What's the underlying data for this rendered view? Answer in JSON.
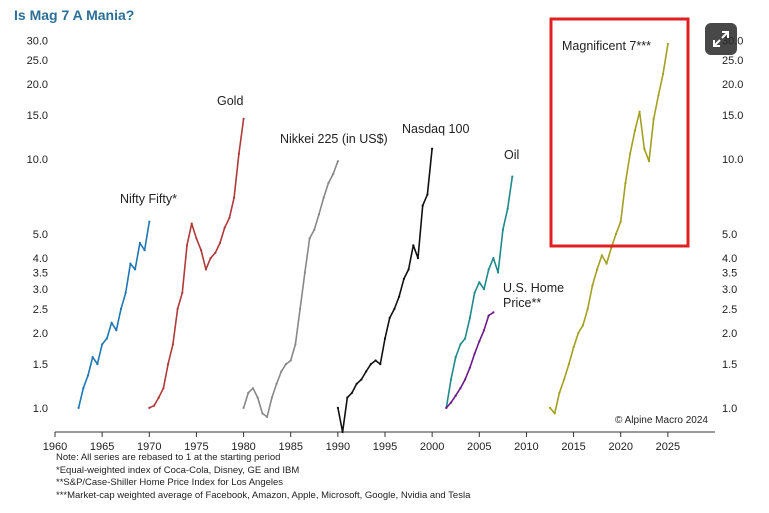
{
  "chart_data": {
    "type": "line",
    "title": "Is Mag 7 A Mania?",
    "y_scale": "log",
    "ylim": [
      0.8,
      33
    ],
    "xlim": [
      1960,
      2030
    ],
    "x_ticks": [
      "1960",
      "1965",
      "1970",
      "1975",
      "1980",
      "1985",
      "1990",
      "1995",
      "2000",
      "2005",
      "2010",
      "2015",
      "2020",
      "2025"
    ],
    "y_ticks": [
      "30.0",
      "25.0",
      "20.0",
      "15.0",
      "10.0",
      "5.0",
      "4.0",
      "3.5",
      "3.0",
      "2.5",
      "2.0",
      "1.5",
      "1.0"
    ],
    "grid": false,
    "source": "© Alpine Macro 2024",
    "series": [
      {
        "name": "Nifty Fifty*",
        "color": "#1f77b4",
        "x": [
          1962.5,
          1963,
          1963.5,
          1964,
          1964.5,
          1965,
          1965.5,
          1966,
          1966.5,
          1967,
          1967.5,
          1968,
          1968.5,
          1969,
          1969.5,
          1970
        ],
        "y": [
          1.0,
          1.2,
          1.35,
          1.6,
          1.5,
          1.8,
          1.9,
          2.2,
          2.05,
          2.5,
          2.9,
          3.8,
          3.6,
          4.6,
          4.3,
          5.6
        ]
      },
      {
        "name": "Gold",
        "color": "#b03a3a",
        "x": [
          1970,
          1970.5,
          1971,
          1971.5,
          1972,
          1972.5,
          1973,
          1973.5,
          1974,
          1974.5,
          1975,
          1975.5,
          1976,
          1976.5,
          1977,
          1977.5,
          1978,
          1978.5,
          1979,
          1979.5,
          1980
        ],
        "y": [
          1.0,
          1.02,
          1.1,
          1.2,
          1.5,
          1.8,
          2.5,
          2.9,
          4.5,
          5.5,
          4.8,
          4.3,
          3.6,
          4.0,
          4.2,
          4.6,
          5.3,
          5.8,
          7.0,
          10.5,
          14.5
        ]
      },
      {
        "name": "Nikkei 225 (in US$)",
        "color": "#888888",
        "x": [
          1980,
          1980.5,
          1981,
          1981.5,
          1982,
          1982.5,
          1983,
          1983.5,
          1984,
          1984.5,
          1985,
          1985.5,
          1986,
          1986.5,
          1987,
          1987.5,
          1988,
          1988.5,
          1989,
          1989.5,
          1990
        ],
        "y": [
          1.0,
          1.15,
          1.2,
          1.1,
          0.95,
          0.92,
          1.1,
          1.25,
          1.4,
          1.5,
          1.55,
          1.8,
          2.5,
          3.5,
          4.8,
          5.2,
          6.0,
          7.0,
          8.0,
          8.7,
          9.8
        ]
      },
      {
        "name": "Nasdaq 100",
        "color": "#111111",
        "x": [
          1990,
          1990.5,
          1991,
          1991.5,
          1992,
          1992.5,
          1993,
          1993.5,
          1994,
          1994.5,
          1995,
          1995.5,
          1996,
          1996.5,
          1997,
          1997.5,
          1998,
          1998.5,
          1999,
          1999.5,
          2000
        ],
        "y": [
          1.0,
          0.8,
          1.1,
          1.15,
          1.25,
          1.3,
          1.4,
          1.5,
          1.55,
          1.5,
          1.9,
          2.3,
          2.5,
          2.8,
          3.3,
          3.6,
          4.5,
          4.0,
          6.5,
          7.2,
          11.0
        ]
      },
      {
        "name": "Oil",
        "color": "#1f8a8a",
        "x": [
          2001.5,
          2002,
          2002.5,
          2003,
          2003.5,
          2004,
          2004.5,
          2005,
          2005.5,
          2006,
          2006.5,
          2007,
          2007.5,
          2008,
          2008.5
        ],
        "y": [
          1.0,
          1.3,
          1.6,
          1.8,
          1.9,
          2.3,
          2.9,
          3.2,
          3.0,
          3.6,
          4.0,
          3.5,
          5.2,
          6.3,
          8.5
        ]
      },
      {
        "name": "U.S. Home Price**",
        "color": "#6a1b8a",
        "x": [
          2001.5,
          2002,
          2002.5,
          2003,
          2003.5,
          2004,
          2004.5,
          2005,
          2005.5,
          2006,
          2006.5
        ],
        "y": [
          1.0,
          1.05,
          1.12,
          1.2,
          1.3,
          1.45,
          1.65,
          1.85,
          2.05,
          2.35,
          2.42
        ]
      },
      {
        "name": "Magnificent 7***",
        "color": "#a3a020",
        "x": [
          2012.5,
          2013,
          2013.5,
          2014,
          2014.5,
          2015,
          2015.5,
          2016,
          2016.5,
          2017,
          2017.5,
          2018,
          2018.5,
          2019,
          2019.5,
          2020,
          2020.5,
          2021,
          2021.5,
          2022,
          2022.5,
          2023,
          2023.5,
          2024,
          2024.5,
          2025
        ],
        "y": [
          1.0,
          0.95,
          1.15,
          1.3,
          1.5,
          1.75,
          2.0,
          2.15,
          2.5,
          3.1,
          3.6,
          4.1,
          3.8,
          4.4,
          5.0,
          5.6,
          8.0,
          10.5,
          13.0,
          15.5,
          11.0,
          9.8,
          14.5,
          18.0,
          22.0,
          29.0
        ]
      }
    ],
    "annotations": [
      "Nifty Fifty*",
      "Gold",
      "Nikkei 225 (in US$)",
      "Nasdaq 100",
      "Oil",
      "U.S. Home",
      "Price**",
      "Magnificent 7***"
    ],
    "highlight": {
      "color": "#e02020",
      "label": "Magnificent 7***"
    }
  },
  "notes": [
    "Note: All series are rebased to 1 at the starting period",
    "*Equal-weighted index of Coca-Cola, Disney, GE and IBM",
    "**S&P/Case-Shiller Home Price Index for Los Angeles",
    "***Market-cap weighted average of Facebook, Amazon, Apple, Microsoft, Google, Nvidia and Tesla"
  ],
  "expand_icon": "expand-arrows-icon"
}
